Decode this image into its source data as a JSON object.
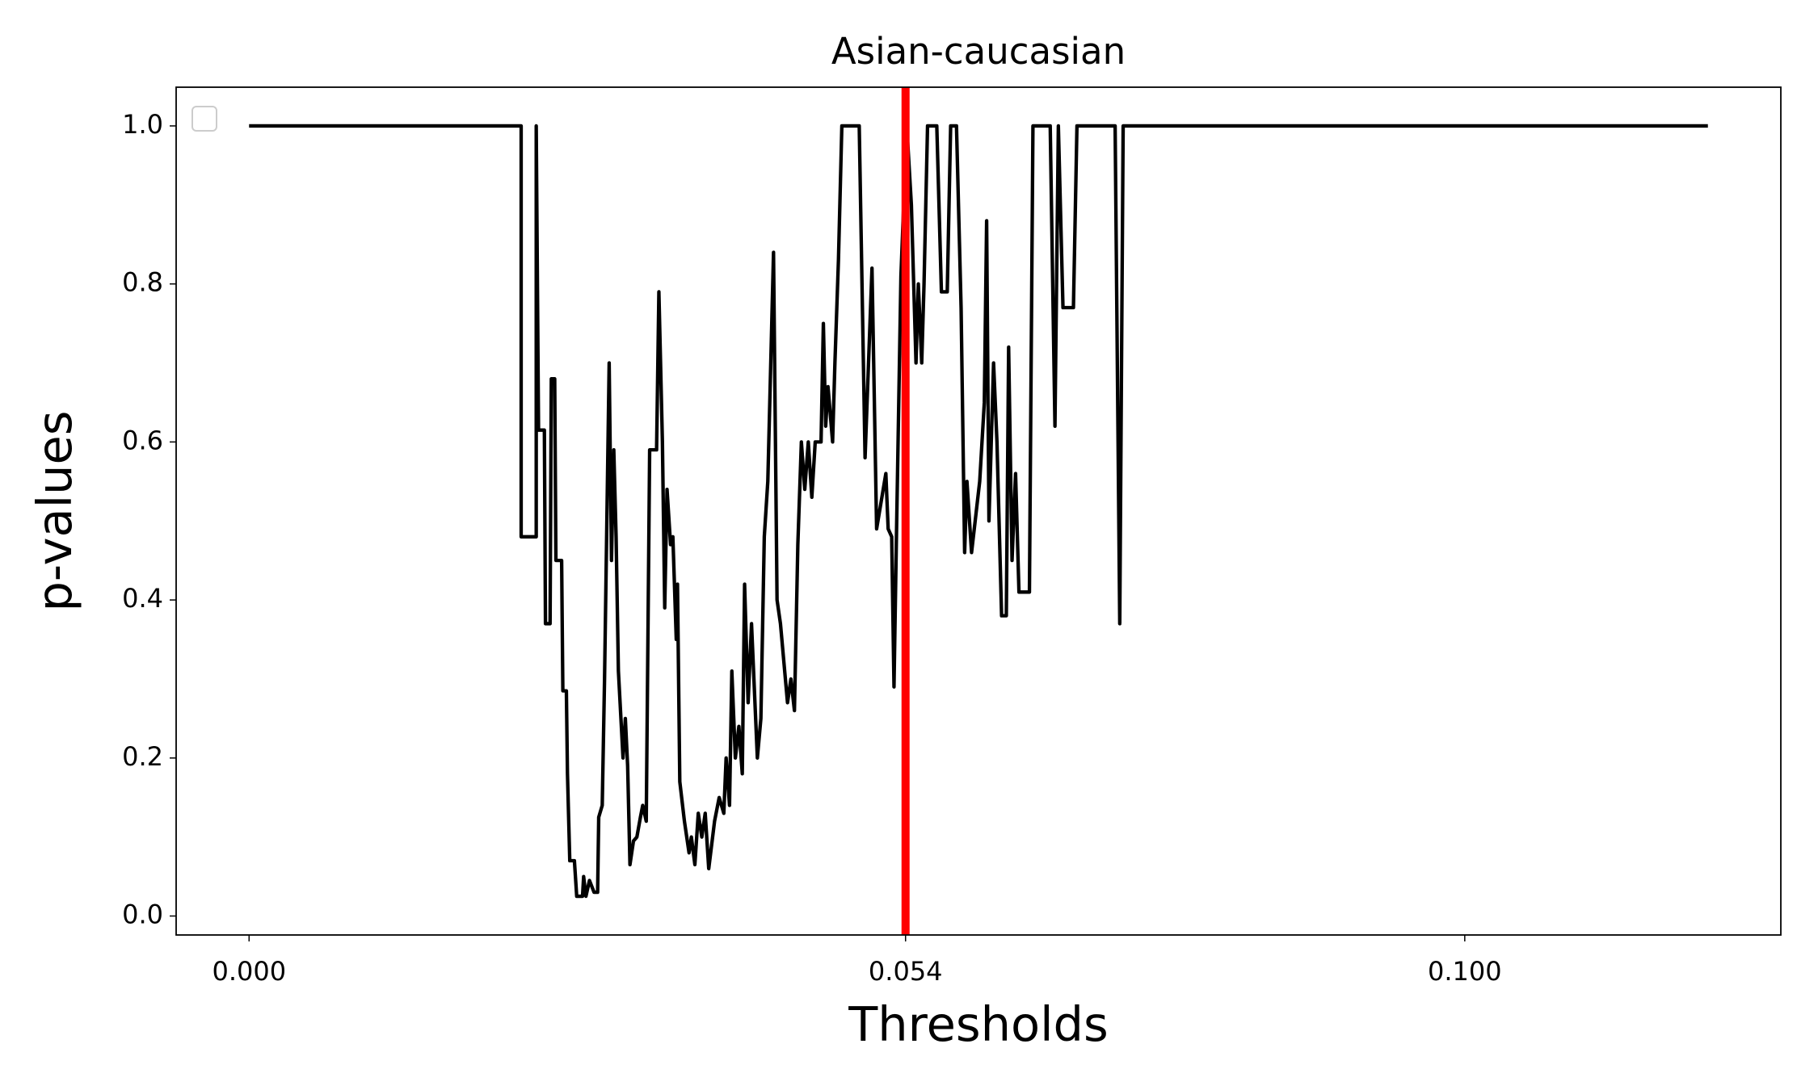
{
  "chart_data": {
    "type": "line",
    "title": "Asian-caucasian",
    "x_label": "Thresholds",
    "y_label": "p-values",
    "xlim": [
      -0.006,
      0.126
    ],
    "ylim": [
      -0.024,
      1.049
    ],
    "xticks": [
      {
        "value": 0,
        "label": "0.000"
      },
      0.054,
      {
        "value": 0.1,
        "label": "0.100"
      }
    ],
    "yticks": [
      {
        "value": 0,
        "label": "0.0"
      },
      0.2,
      0.4,
      0.6,
      0.8,
      {
        "value": 1,
        "label": "1.0"
      }
    ],
    "vline": {
      "x": 0.054,
      "color": "#ff0000"
    },
    "legend": "upper left",
    "series": [
      {
        "color": "#000000",
        "x": [
          0,
          0.02238,
          0.02238,
          0.02362,
          0.02362,
          0.02381,
          0.02429,
          0.02438,
          0.02476,
          0.02486,
          0.02514,
          0.02524,
          0.02571,
          0.02581,
          0.0261,
          0.02619,
          0.02638,
          0.02676,
          0.02695,
          0.02743,
          0.02752,
          0.02771,
          0.028,
          0.02838,
          0.02867,
          0.02876,
          0.02905,
          0.02924,
          0.02943,
          0.02962,
          0.02981,
          0.03,
          0.03019,
          0.03038,
          0.03076,
          0.03095,
          0.03114,
          0.03133,
          0.03162,
          0.0319,
          0.03219,
          0.03238,
          0.03267,
          0.03295,
          0.03352,
          0.03371,
          0.034,
          0.03419,
          0.03438,
          0.03467,
          0.03486,
          0.03514,
          0.03524,
          0.03543,
          0.03581,
          0.03619,
          0.03638,
          0.03667,
          0.03695,
          0.03724,
          0.03752,
          0.03781,
          0.03829,
          0.03867,
          0.03905,
          0.03924,
          0.03952,
          0.03971,
          0.04,
          0.04029,
          0.04057,
          0.04076,
          0.04105,
          0.04133,
          0.04181,
          0.0421,
          0.04238,
          0.04267,
          0.04314,
          0.04343,
          0.04371,
          0.044,
          0.04429,
          0.04457,
          0.04486,
          0.04514,
          0.04543,
          0.04571,
          0.046,
          0.04629,
          0.04657,
          0.04705,
          0.04724,
          0.04743,
          0.04762,
          0.048,
          0.04819,
          0.04848,
          0.04876,
          0.05019,
          0.05067,
          0.05124,
          0.05162,
          0.05238,
          0.05257,
          0.05286,
          0.05305,
          0.05324,
          0.05362,
          0.0541,
          0.05448,
          0.05486,
          0.05505,
          0.05533,
          0.05552,
          0.05581,
          0.05657,
          0.05695,
          0.05743,
          0.05771,
          0.05819,
          0.05857,
          0.05886,
          0.05905,
          0.05943,
          0.0601,
          0.06048,
          0.06067,
          0.06086,
          0.06124,
          0.06152,
          0.0619,
          0.06229,
          0.06248,
          0.06276,
          0.06305,
          0.06333,
          0.06419,
          0.06448,
          0.0659,
          0.06629,
          0.06657,
          0.06695,
          0.06781,
          0.0681,
          0.07124,
          0.07162,
          0.0719,
          0.12
        ],
        "values": [
          1,
          1,
          0.48,
          0.48,
          1,
          0.615,
          0.615,
          0.37,
          0.37,
          0.68,
          0.68,
          0.45,
          0.45,
          0.285,
          0.285,
          0.18,
          0.07,
          0.07,
          0.025,
          0.025,
          0.05,
          0.025,
          0.045,
          0.03,
          0.03,
          0.125,
          0.14,
          0.3,
          0.5,
          0.7,
          0.45,
          0.59,
          0.48,
          0.31,
          0.2,
          0.25,
          0.19,
          0.065,
          0.095,
          0.1,
          0.125,
          0.14,
          0.12,
          0.59,
          0.59,
          0.79,
          0.6,
          0.39,
          0.54,
          0.47,
          0.48,
          0.35,
          0.42,
          0.17,
          0.12,
          0.08,
          0.1,
          0.065,
          0.13,
          0.1,
          0.13,
          0.06,
          0.12,
          0.15,
          0.13,
          0.2,
          0.14,
          0.31,
          0.2,
          0.24,
          0.18,
          0.42,
          0.27,
          0.37,
          0.2,
          0.25,
          0.48,
          0.55,
          0.84,
          0.4,
          0.37,
          0.32,
          0.27,
          0.3,
          0.26,
          0.47,
          0.6,
          0.54,
          0.6,
          0.53,
          0.6,
          0.6,
          0.75,
          0.62,
          0.67,
          0.6,
          0.7,
          0.83,
          1,
          1,
          0.58,
          0.82,
          0.49,
          0.56,
          0.49,
          0.48,
          0.29,
          0.47,
          0.81,
          1,
          0.9,
          0.7,
          0.8,
          0.7,
          0.8,
          1,
          1,
          0.79,
          0.79,
          1,
          1,
          0.77,
          0.46,
          0.55,
          0.46,
          0.55,
          0.65,
          0.88,
          0.5,
          0.7,
          0.6,
          0.38,
          0.38,
          0.72,
          0.45,
          0.56,
          0.41,
          0.41,
          1,
          1,
          0.62,
          1,
          0.77,
          0.77,
          1,
          1,
          0.37,
          1,
          1
        ]
      }
    ]
  }
}
